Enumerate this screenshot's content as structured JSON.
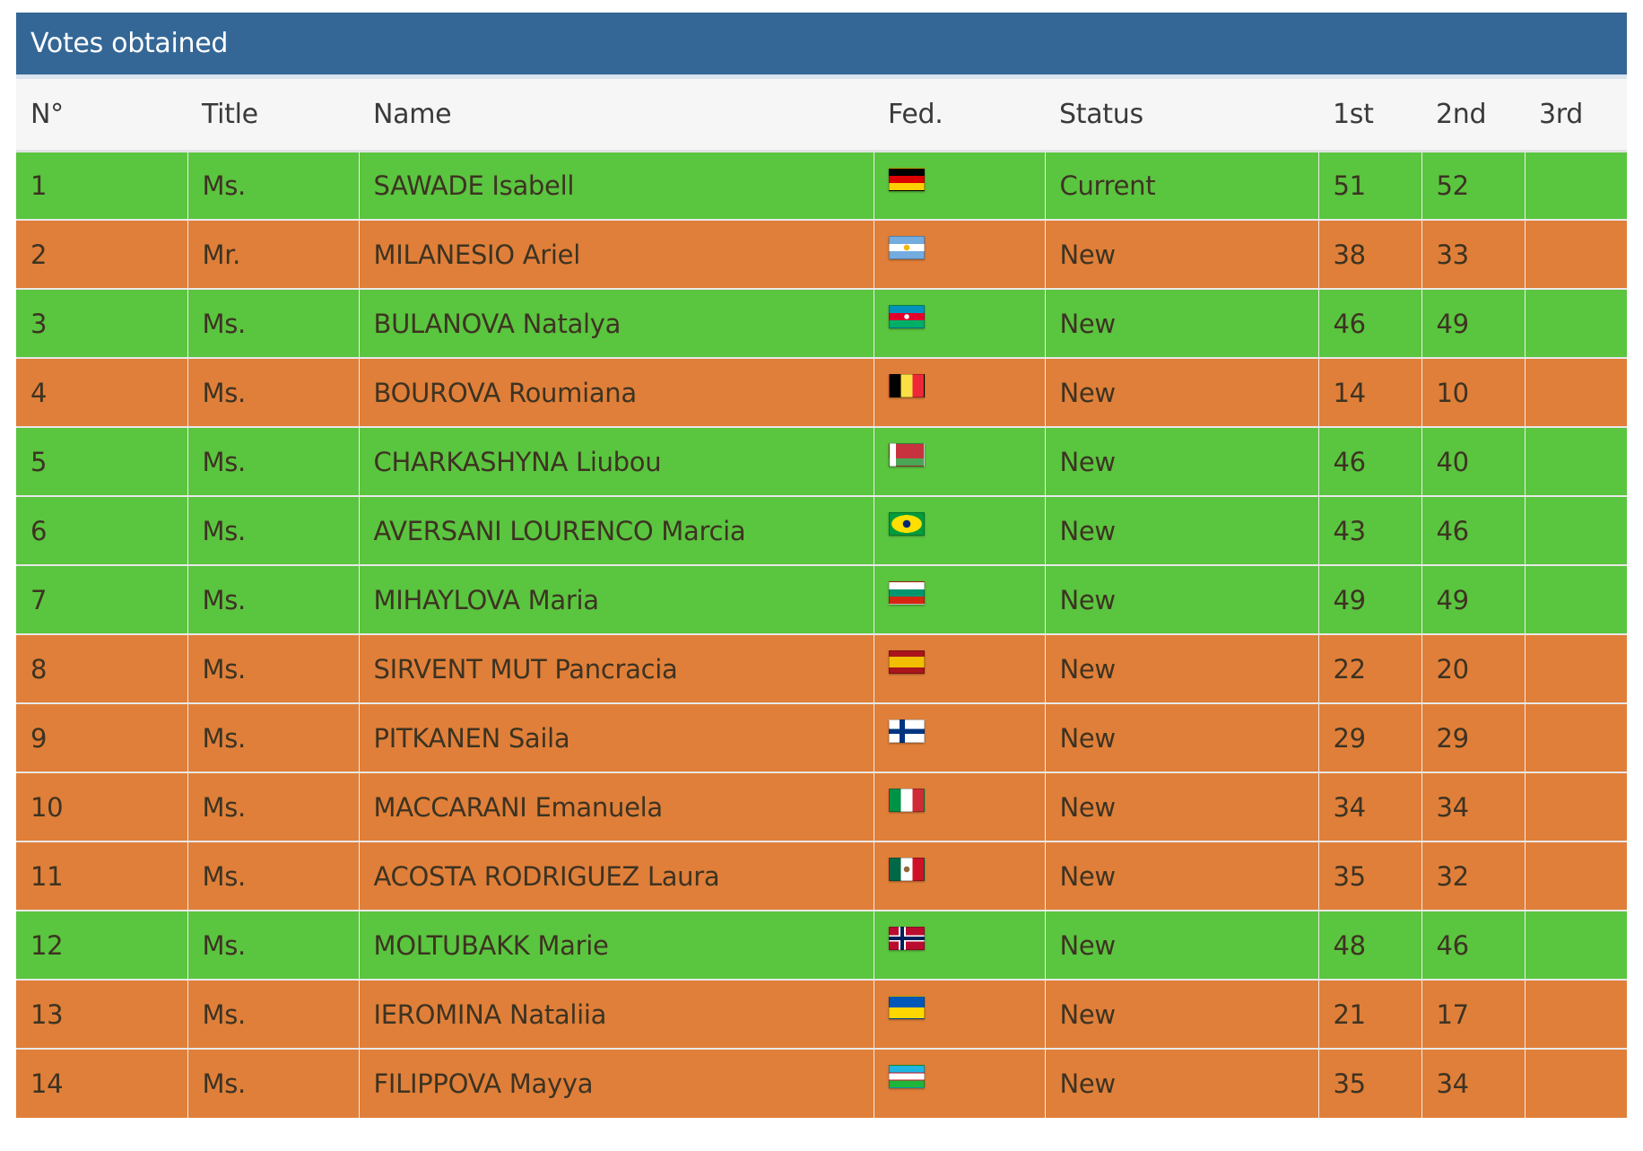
{
  "header": {
    "title": "Votes obtained"
  },
  "table": {
    "columns": [
      "N°",
      "Title",
      "Name",
      "Fed.",
      "Status",
      "1st",
      "2nd",
      "3rd"
    ],
    "row_colors": {
      "win": "#5ac53f",
      "lose": "#e07f39"
    },
    "rows": [
      {
        "no": "1",
        "title": "Ms.",
        "name": "SAWADE Isabell",
        "fed_icon": "germany-flag-icon",
        "status": "Current",
        "first": "51",
        "second": "52",
        "third": "",
        "color": "win"
      },
      {
        "no": "2",
        "title": "Mr.",
        "name": "MILANESIO Ariel",
        "fed_icon": "argentina-flag-icon",
        "status": "New",
        "first": "38",
        "second": "33",
        "third": "",
        "color": "lose"
      },
      {
        "no": "3",
        "title": "Ms.",
        "name": "BULANOVA Natalya",
        "fed_icon": "azerbaijan-flag-icon",
        "status": "New",
        "first": "46",
        "second": "49",
        "third": "",
        "color": "win"
      },
      {
        "no": "4",
        "title": "Ms.",
        "name": "BOUROVA Roumiana",
        "fed_icon": "belgium-flag-icon",
        "status": "New",
        "first": "14",
        "second": "10",
        "third": "",
        "color": "lose"
      },
      {
        "no": "5",
        "title": "Ms.",
        "name": "CHARKASHYNA Liubou",
        "fed_icon": "belarus-flag-icon",
        "status": "New",
        "first": "46",
        "second": "40",
        "third": "",
        "color": "win"
      },
      {
        "no": "6",
        "title": "Ms.",
        "name": "AVERSANI LOURENCO Marcia",
        "fed_icon": "brazil-flag-icon",
        "status": "New",
        "first": "43",
        "second": "46",
        "third": "",
        "color": "win"
      },
      {
        "no": "7",
        "title": "Ms.",
        "name": "MIHAYLOVA Maria",
        "fed_icon": "bulgaria-flag-icon",
        "status": "New",
        "first": "49",
        "second": "49",
        "third": "",
        "color": "win"
      },
      {
        "no": "8",
        "title": "Ms.",
        "name": "SIRVENT MUT Pancracia",
        "fed_icon": "spain-flag-icon",
        "status": "New",
        "first": "22",
        "second": "20",
        "third": "",
        "color": "lose"
      },
      {
        "no": "9",
        "title": "Ms.",
        "name": "PITKANEN Saila",
        "fed_icon": "finland-flag-icon",
        "status": "New",
        "first": "29",
        "second": "29",
        "third": "",
        "color": "lose"
      },
      {
        "no": "10",
        "title": "Ms.",
        "name": "MACCARANI Emanuela",
        "fed_icon": "italy-flag-icon",
        "status": "New",
        "first": "34",
        "second": "34",
        "third": "",
        "color": "lose"
      },
      {
        "no": "11",
        "title": "Ms.",
        "name": "ACOSTA RODRIGUEZ Laura",
        "fed_icon": "mexico-flag-icon",
        "status": "New",
        "first": "35",
        "second": "32",
        "third": "",
        "color": "lose"
      },
      {
        "no": "12",
        "title": "Ms.",
        "name": "MOLTUBAKK Marie",
        "fed_icon": "norway-flag-icon",
        "status": "New",
        "first": "48",
        "second": "46",
        "third": "",
        "color": "win"
      },
      {
        "no": "13",
        "title": "Ms.",
        "name": "IEROMINA Nataliia",
        "fed_icon": "ukraine-flag-icon",
        "status": "New",
        "first": "21",
        "second": "17",
        "third": "",
        "color": "lose"
      },
      {
        "no": "14",
        "title": "Ms.",
        "name": "FILIPPOVA Mayya",
        "fed_icon": "uzbekistan-flag-icon",
        "status": "New",
        "first": "35",
        "second": "34",
        "third": "",
        "color": "lose"
      }
    ]
  }
}
